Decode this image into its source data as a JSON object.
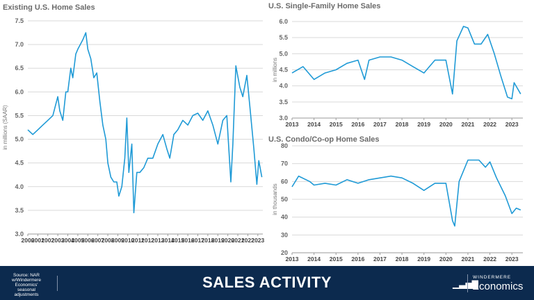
{
  "chart_data": [
    {
      "type": "line",
      "title": "Existing U.S. Home Sales",
      "ylabel": "in millions (SAAR)",
      "ylim": [
        3.0,
        7.5
      ],
      "yticks": [
        "3.0",
        "3.5",
        "4.0",
        "4.5",
        "5.0",
        "5.5",
        "6.0",
        "6.5",
        "7.0",
        "7.5"
      ],
      "xlim": [
        2000,
        2023.5
      ],
      "xticks": [
        "2000",
        "2001",
        "2002",
        "2003",
        "2004",
        "2005",
        "2006",
        "2007",
        "2008",
        "2009",
        "2010",
        "2011",
        "2012",
        "2013",
        "2014",
        "2015",
        "2016",
        "2017",
        "2018",
        "2019",
        "2020",
        "2021",
        "2022",
        "2023"
      ],
      "color": "#1f9ad6",
      "grid": true,
      "x": [
        2000,
        2000.5,
        2001,
        2001.5,
        2002,
        2002.5,
        2003,
        2003.2,
        2003.5,
        2003.8,
        2004,
        2004.3,
        2004.5,
        2004.8,
        2005,
        2005.5,
        2005.8,
        2006,
        2006.3,
        2006.6,
        2006.9,
        2007.2,
        2007.5,
        2007.8,
        2008,
        2008.3,
        2008.6,
        2008.9,
        2009.1,
        2009.4,
        2009.7,
        2009.9,
        2010.1,
        2010.4,
        2010.6,
        2010.9,
        2011.2,
        2011.6,
        2012,
        2012.5,
        2013,
        2013.5,
        2013.9,
        2014.2,
        2014.6,
        2015,
        2015.5,
        2016,
        2016.5,
        2017,
        2017.5,
        2018,
        2018.5,
        2019,
        2019.5,
        2019.9,
        2020.3,
        2020.5,
        2020.8,
        2021.2,
        2021.5,
        2021.9,
        2022.2,
        2022.6,
        2022.9,
        2023.1,
        2023.4
      ],
      "y": [
        5.2,
        5.1,
        5.2,
        5.3,
        5.4,
        5.5,
        5.9,
        5.6,
        5.4,
        6.0,
        6.0,
        6.5,
        6.3,
        6.8,
        6.9,
        7.1,
        7.25,
        6.9,
        6.7,
        6.3,
        6.4,
        5.8,
        5.3,
        5.0,
        4.5,
        4.2,
        4.1,
        4.1,
        3.8,
        4.0,
        4.6,
        5.45,
        4.3,
        4.9,
        3.45,
        4.3,
        4.3,
        4.4,
        4.6,
        4.6,
        4.9,
        5.1,
        4.8,
        4.6,
        5.1,
        5.2,
        5.4,
        5.3,
        5.5,
        5.55,
        5.4,
        5.6,
        5.3,
        4.9,
        5.4,
        5.5,
        4.1,
        4.9,
        6.55,
        6.1,
        5.9,
        6.35,
        5.7,
        4.8,
        4.05,
        4.55,
        4.2
      ]
    },
    {
      "type": "line",
      "title": "U.S. Single-Family Home Sales",
      "ylabel": "in millions",
      "ylim": [
        3.0,
        6.0
      ],
      "yticks": [
        "3.0",
        "3.5",
        "4.0",
        "4.5",
        "5.0",
        "5.5",
        "6.0"
      ],
      "xlim": [
        2013,
        2023.5
      ],
      "xticks": [
        "2013",
        "2014",
        "2015",
        "2016",
        "2017",
        "2018",
        "2019",
        "2020",
        "2021",
        "2022",
        "2023"
      ],
      "color": "#1f9ad6",
      "grid": true,
      "x": [
        2013,
        2013.5,
        2014,
        2014.5,
        2015,
        2015.5,
        2016,
        2016.3,
        2016.5,
        2017,
        2017.5,
        2018,
        2018.5,
        2019,
        2019.5,
        2020,
        2020.3,
        2020.5,
        2020.8,
        2021,
        2021.3,
        2021.6,
        2021.9,
        2022.2,
        2022.5,
        2022.8,
        2023,
        2023.1,
        2023.4
      ],
      "y": [
        4.4,
        4.6,
        4.2,
        4.4,
        4.5,
        4.7,
        4.8,
        4.2,
        4.8,
        4.9,
        4.9,
        4.8,
        4.6,
        4.4,
        4.8,
        4.8,
        3.75,
        5.4,
        5.85,
        5.8,
        5.3,
        5.3,
        5.6,
        5.0,
        4.3,
        3.65,
        3.6,
        4.1,
        3.75
      ]
    },
    {
      "type": "line",
      "title": "U.S. Condo/Co-op Home Sales",
      "ylabel": "in thousands",
      "ylim": [
        20,
        80
      ],
      "yticks": [
        "20",
        "30",
        "40",
        "50",
        "60",
        "70",
        "80"
      ],
      "xlim": [
        2013,
        2023.5
      ],
      "xticks": [
        "2013",
        "2014",
        "2015",
        "2016",
        "2017",
        "2018",
        "2019",
        "2020",
        "2021",
        "2022",
        "2023"
      ],
      "color": "#1f9ad6",
      "grid": true,
      "x": [
        2013,
        2013.3,
        2013.8,
        2014,
        2014.5,
        2015,
        2015.5,
        2016,
        2016.5,
        2017,
        2017.5,
        2018,
        2018.5,
        2019,
        2019.5,
        2020,
        2020.3,
        2020.4,
        2020.6,
        2021,
        2021.5,
        2021.8,
        2022,
        2022.3,
        2022.7,
        2023,
        2023.2,
        2023.4
      ],
      "y": [
        57,
        63,
        60,
        58,
        59,
        58,
        61,
        59,
        61,
        62,
        63,
        62,
        59,
        55,
        59,
        59,
        38,
        35,
        60,
        72,
        72,
        68,
        71,
        62,
        52,
        42,
        45,
        44
      ]
    }
  ],
  "footer": {
    "source": "Source: NAR w/Windermere Economics' seasonal adjustments",
    "title": "SALES ACTIVITY",
    "brand_top": "WINDERMERE",
    "brand": "Economics"
  }
}
